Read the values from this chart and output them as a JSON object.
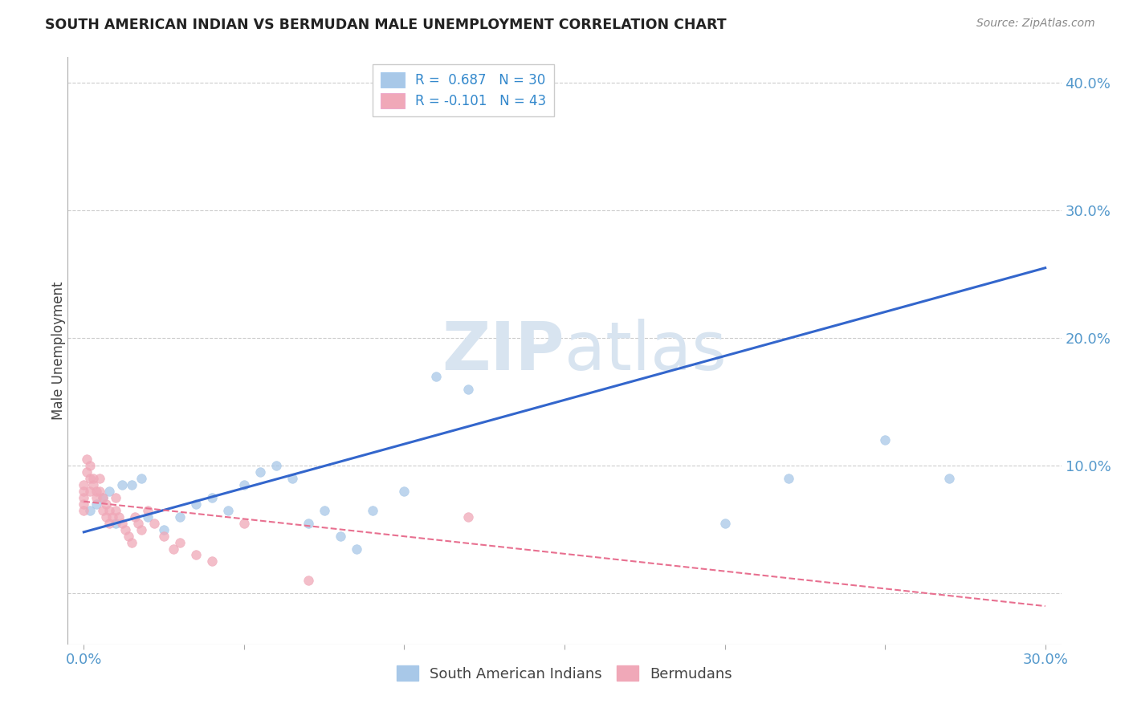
{
  "title": "SOUTH AMERICAN INDIAN VS BERMUDAN MALE UNEMPLOYMENT CORRELATION CHART",
  "source": "Source: ZipAtlas.com",
  "ylabel": "Male Unemployment",
  "xlim": [
    -0.005,
    0.305
  ],
  "ylim": [
    -0.04,
    0.42
  ],
  "xticks": [
    0.0,
    0.05,
    0.1,
    0.15,
    0.2,
    0.25,
    0.3
  ],
  "yticks": [
    0.0,
    0.1,
    0.2,
    0.3,
    0.4
  ],
  "background_color": "#ffffff",
  "grid_color": "#cccccc",
  "blue_R": "R =  0.687",
  "blue_N": "N = 30",
  "pink_R": "R = -0.101",
  "pink_N": "N = 43",
  "blue_color": "#a8c8e8",
  "pink_color": "#f0a8b8",
  "blue_line_color": "#3366cc",
  "pink_line_color": "#e87090",
  "blue_scatter_x": [
    0.002,
    0.004,
    0.006,
    0.008,
    0.01,
    0.012,
    0.015,
    0.018,
    0.02,
    0.025,
    0.03,
    0.035,
    0.04,
    0.045,
    0.05,
    0.055,
    0.06,
    0.065,
    0.07,
    0.075,
    0.08,
    0.085,
    0.09,
    0.1,
    0.11,
    0.12,
    0.25,
    0.27,
    0.22,
    0.2
  ],
  "blue_scatter_y": [
    0.065,
    0.07,
    0.075,
    0.08,
    0.055,
    0.085,
    0.085,
    0.09,
    0.06,
    0.05,
    0.06,
    0.07,
    0.075,
    0.065,
    0.085,
    0.095,
    0.1,
    0.09,
    0.055,
    0.065,
    0.045,
    0.035,
    0.065,
    0.08,
    0.17,
    0.16,
    0.12,
    0.09,
    0.09,
    0.055
  ],
  "pink_scatter_x": [
    0.0,
    0.0,
    0.0,
    0.0,
    0.0,
    0.001,
    0.001,
    0.002,
    0.002,
    0.002,
    0.003,
    0.003,
    0.004,
    0.004,
    0.005,
    0.005,
    0.006,
    0.006,
    0.007,
    0.007,
    0.008,
    0.008,
    0.009,
    0.01,
    0.01,
    0.011,
    0.012,
    0.013,
    0.014,
    0.015,
    0.016,
    0.017,
    0.018,
    0.02,
    0.022,
    0.025,
    0.028,
    0.03,
    0.035,
    0.04,
    0.05,
    0.07,
    0.12
  ],
  "pink_scatter_y": [
    0.085,
    0.08,
    0.075,
    0.07,
    0.065,
    0.105,
    0.095,
    0.1,
    0.09,
    0.08,
    0.09,
    0.085,
    0.08,
    0.075,
    0.09,
    0.08,
    0.075,
    0.065,
    0.07,
    0.06,
    0.065,
    0.055,
    0.06,
    0.075,
    0.065,
    0.06,
    0.055,
    0.05,
    0.045,
    0.04,
    0.06,
    0.055,
    0.05,
    0.065,
    0.055,
    0.045,
    0.035,
    0.04,
    0.03,
    0.025,
    0.055,
    0.01,
    0.06
  ],
  "blue_trendline_x": [
    0.0,
    0.3
  ],
  "blue_trendline_y": [
    0.048,
    0.255
  ],
  "pink_trendline_x": [
    0.0,
    0.3
  ],
  "pink_trendline_y": [
    0.072,
    -0.01
  ],
  "watermark_zip": "ZIP",
  "watermark_atlas": "atlas",
  "watermark_color": "#d8e4f0",
  "legend_blue_label": "South American Indians",
  "legend_pink_label": "Bermudans",
  "marker_size": 70
}
